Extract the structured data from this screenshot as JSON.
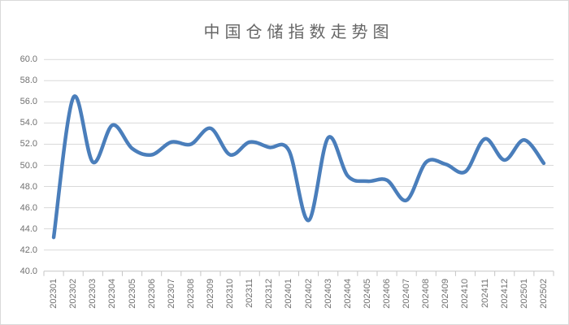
{
  "chart_data": {
    "type": "line",
    "title": "中国仓储指数走势图",
    "xlabel": "",
    "ylabel": "",
    "categories": [
      "202301",
      "202302",
      "202303",
      "202304",
      "202305",
      "202306",
      "202307",
      "202308",
      "202309",
      "202310",
      "202311",
      "202312",
      "202401",
      "202402",
      "202403",
      "202404",
      "202405",
      "202406",
      "202407",
      "202408",
      "202409",
      "202410",
      "202411",
      "202412",
      "202501",
      "202502"
    ],
    "values": [
      43.2,
      56.4,
      50.3,
      53.8,
      51.6,
      51.0,
      52.2,
      52.0,
      53.5,
      51.0,
      52.2,
      51.7,
      51.4,
      44.8,
      52.6,
      49.0,
      48.5,
      48.6,
      46.7,
      50.3,
      50.1,
      49.4,
      52.5,
      50.5,
      52.4,
      50.2
    ],
    "ylim": [
      40,
      60
    ],
    "y_tick_labels": [
      "40.0",
      "42.0",
      "44.0",
      "46.0",
      "48.0",
      "50.0",
      "52.0",
      "54.0",
      "56.0",
      "58.0",
      "60.0"
    ],
    "grid": true,
    "smooth": true,
    "legend": "none",
    "colors": {
      "line": "#4A7EBB",
      "gridline": "#D9D9D9",
      "axis": "#C6C6C6",
      "tick_label": "#707070",
      "title": "#666666",
      "background": "#FFFFFF"
    }
  }
}
